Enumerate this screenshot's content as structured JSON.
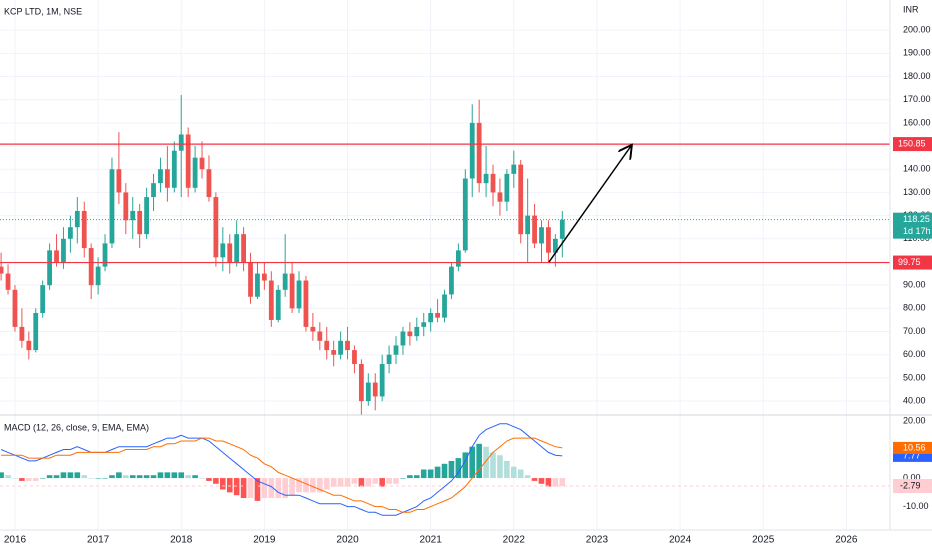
{
  "header": {
    "title": "KCP LTD, 1M, NSE",
    "currency": "INR"
  },
  "chart_data": [
    {
      "type": "candlestick",
      "up_color": "#26a69a",
      "down_color": "#ef5350",
      "open": [
        98,
        95,
        88,
        72,
        66,
        62,
        78,
        90,
        105,
        100,
        110,
        115,
        122,
        106,
        90,
        98,
        108,
        140,
        130,
        118,
        122,
        112,
        128,
        134,
        140,
        132,
        148,
        155,
        132,
        145,
        140,
        128,
        102,
        108,
        100,
        112,
        100,
        85,
        95,
        92,
        75,
        88,
        95,
        80,
        92,
        72,
        70,
        66,
        62,
        60,
        66,
        62,
        56,
        40,
        48,
        42,
        56,
        60,
        64,
        70,
        68,
        72,
        74,
        78,
        76,
        86,
        98,
        105,
        136,
        160,
        134,
        138,
        130,
        126,
        138,
        142,
        112,
        120,
        108,
        115,
        104,
        110
      ],
      "high": [
        104,
        99,
        90,
        80,
        70,
        80,
        92,
        108,
        112,
        115,
        120,
        128,
        126,
        108,
        102,
        112,
        145,
        156,
        134,
        128,
        125,
        132,
        138,
        145,
        150,
        152,
        172,
        158,
        150,
        152,
        146,
        130,
        115,
        112,
        118,
        115,
        104,
        100,
        100,
        96,
        90,
        112,
        100,
        96,
        94,
        78,
        74,
        72,
        66,
        70,
        72,
        64,
        58,
        52,
        52,
        60,
        64,
        68,
        72,
        74,
        76,
        78,
        80,
        84,
        88,
        100,
        108,
        140,
        168,
        170,
        150,
        142,
        136,
        140,
        148,
        144,
        136,
        125,
        118,
        118,
        112,
        122
      ],
      "low": [
        92,
        86,
        70,
        63,
        58,
        61,
        76,
        88,
        98,
        97,
        104,
        108,
        102,
        84,
        86,
        96,
        106,
        125,
        112,
        110,
        106,
        110,
        122,
        130,
        126,
        130,
        128,
        128,
        130,
        136,
        126,
        98,
        96,
        95,
        98,
        96,
        82,
        84,
        88,
        72,
        74,
        85,
        78,
        78,
        70,
        66,
        62,
        58,
        55,
        58,
        58,
        52,
        34,
        38,
        36,
        40,
        52,
        56,
        60,
        64,
        66,
        68,
        70,
        74,
        74,
        84,
        96,
        104,
        128,
        130,
        128,
        124,
        120,
        122,
        132,
        108,
        100,
        106,
        100,
        100,
        98,
        102
      ],
      "close": [
        95,
        88,
        72,
        66,
        62,
        78,
        90,
        105,
        100,
        110,
        115,
        122,
        106,
        90,
        98,
        108,
        140,
        130,
        118,
        122,
        112,
        128,
        134,
        140,
        132,
        148,
        155,
        132,
        145,
        140,
        128,
        102,
        108,
        100,
        112,
        100,
        85,
        95,
        92,
        75,
        88,
        95,
        80,
        92,
        72,
        70,
        66,
        62,
        60,
        66,
        62,
        56,
        40,
        48,
        42,
        56,
        60,
        64,
        70,
        68,
        72,
        74,
        78,
        76,
        86,
        98,
        105,
        136,
        160,
        134,
        138,
        130,
        126,
        138,
        142,
        112,
        120,
        108,
        115,
        104,
        110,
        118.25
      ],
      "levels": [
        {
          "value": 150.85,
          "color": "#f23645"
        },
        {
          "value": 99.75,
          "color": "#f23645"
        }
      ],
      "last_price": 118.25,
      "countdown": "1d 17h",
      "xlim": [
        -0.16,
        128.3
      ],
      "xticks": [
        {
          "value": 2,
          "label": "2016"
        },
        {
          "value": 14,
          "label": "2017"
        },
        {
          "value": 26,
          "label": "2018"
        },
        {
          "value": 38,
          "label": "2019"
        },
        {
          "value": 50,
          "label": "2020"
        },
        {
          "value": 62,
          "label": "2021"
        },
        {
          "value": 74,
          "label": "2022"
        },
        {
          "value": 86,
          "label": "2023"
        },
        {
          "value": 98,
          "label": "2024"
        },
        {
          "value": 110,
          "label": "2025"
        },
        {
          "value": 122,
          "label": "2026"
        }
      ],
      "ylim": [
        34,
        213
      ],
      "yticks": [
        {
          "value": 40,
          "label": "40.00"
        },
        {
          "value": 50,
          "label": "50.00"
        },
        {
          "value": 60,
          "label": "60.00"
        },
        {
          "value": 70,
          "label": "70.00"
        },
        {
          "value": 80,
          "label": "80.00"
        },
        {
          "value": 90,
          "label": "90.00"
        },
        {
          "value": 100,
          "label": "100.00"
        },
        {
          "value": 110,
          "label": "110.00"
        },
        {
          "value": 120,
          "label": "120.00"
        },
        {
          "value": 130,
          "label": "130.00"
        },
        {
          "value": 140,
          "label": "140.00"
        },
        {
          "value": 150,
          "label": "150.00"
        },
        {
          "value": 160,
          "label": "160.00"
        },
        {
          "value": 170,
          "label": "170.00"
        },
        {
          "value": 180,
          "label": "180.00"
        },
        {
          "value": 190,
          "label": "190.00"
        },
        {
          "value": 200,
          "label": "200.00"
        }
      ],
      "grid": true
    },
    {
      "type": "macd",
      "title": "MACD (12, 26, close, 9, EMA, EMA)",
      "series": [
        {
          "color": "#2962ff",
          "values": [
            10,
            9,
            8,
            7,
            6,
            6,
            7,
            8,
            9,
            10,
            10,
            11,
            10,
            9,
            9,
            9,
            10,
            11,
            11,
            11,
            11,
            11,
            12,
            13,
            14,
            14,
            15,
            14,
            14,
            14,
            13,
            11,
            9,
            7,
            5,
            3,
            1,
            -1,
            -2,
            -3,
            -5,
            -6,
            -6,
            -6,
            -7,
            -8,
            -9,
            -9,
            -9,
            -9,
            -10,
            -10,
            -11,
            -12,
            -12,
            -13,
            -13,
            -13,
            -12,
            -11,
            -10,
            -8,
            -7,
            -5,
            -3,
            -1,
            2,
            6,
            11,
            15,
            17,
            18,
            19,
            19,
            18,
            17,
            15,
            13,
            11,
            9,
            8,
            7.77
          ]
        },
        {
          "color": "#ff6d00",
          "values": [
            8,
            8,
            8,
            8,
            7,
            7,
            7,
            7,
            8,
            8,
            8,
            9,
            9,
            9,
            9,
            9,
            9,
            9,
            10,
            10,
            10,
            10,
            11,
            11,
            12,
            12,
            13,
            13,
            13,
            14,
            14,
            13,
            13,
            12,
            11,
            10,
            8,
            7,
            5,
            4,
            2,
            1,
            0,
            -1,
            -2,
            -3,
            -4,
            -5,
            -6,
            -6,
            -7,
            -8,
            -8,
            -9,
            -10,
            -10,
            -11,
            -11,
            -12,
            -12,
            -11,
            -11,
            -10,
            -9,
            -8,
            -7,
            -5,
            -3,
            0,
            3,
            6,
            9,
            11,
            13,
            14,
            14,
            14,
            14,
            13,
            12,
            11,
            10.56
          ]
        }
      ],
      "histogram": [
        2,
        1,
        0,
        -1,
        -1,
        -1,
        0,
        1,
        1,
        2,
        2,
        2,
        1,
        0,
        0,
        0,
        1,
        2,
        1,
        1,
        1,
        1,
        1,
        2,
        2,
        2,
        2,
        1,
        1,
        0,
        -1,
        -2,
        -4,
        -5,
        -6,
        -7,
        -7,
        -8,
        -7,
        -7,
        -7,
        -7,
        -6,
        -5,
        -5,
        -5,
        -5,
        -4,
        -3,
        -3,
        -3,
        -2,
        -3,
        -3,
        -2,
        -3,
        -2,
        -2,
        0,
        1,
        1,
        3,
        3,
        4,
        5,
        6,
        7,
        9,
        11,
        12,
        11,
        9,
        8,
        6,
        4,
        3,
        1,
        -1,
        -2,
        -3,
        -3,
        -2.79
      ],
      "hist_colors": [
        "#26a69a",
        "#b2dfdb",
        "#ff5252",
        "#ffcdd2"
      ],
      "ylim": [
        -18.2,
        22.1
      ],
      "yticks": [
        {
          "value": 20,
          "label": "20.00"
        },
        {
          "value": 0,
          "label": "0.00"
        },
        {
          "value": -10,
          "label": "-10.00"
        }
      ]
    }
  ]
}
